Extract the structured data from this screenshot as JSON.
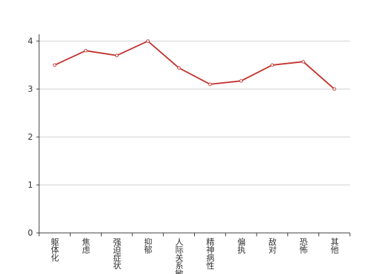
{
  "chart_data": {
    "type": "line",
    "categories": [
      "躯体化",
      "焦虑",
      "强迫症状",
      "抑郁",
      "人际关系敏感",
      "精神病性",
      "偏执",
      "敌对",
      "恐怖",
      "其他"
    ],
    "series": [
      {
        "color": "#c23531",
        "values": [
          3.5,
          3.8,
          3.7,
          4.0,
          3.44,
          3.1,
          3.17,
          3.5,
          3.57,
          3.0
        ]
      }
    ],
    "ylim": [
      0,
      4
    ],
    "yticks": [
      0,
      1,
      2,
      3,
      4
    ],
    "grid": true
  }
}
